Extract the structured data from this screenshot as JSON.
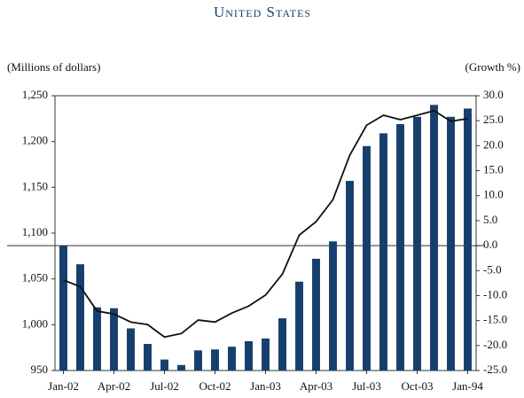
{
  "chart_data": {
    "type": "bar",
    "title": "United States",
    "y_label": "(Millions of dollars)",
    "y2_label": "(Growth %)",
    "categories": [
      "Jan-02",
      null,
      null,
      "Apr-02",
      null,
      null,
      "Jul-02",
      null,
      null,
      "Oct-02",
      null,
      null,
      "Jan-03",
      null,
      null,
      "Apr-03",
      null,
      null,
      "Jul-03",
      null,
      null,
      "Oct-03",
      null,
      null,
      "Jan-94"
    ],
    "series": [
      {
        "type": "bar",
        "axis": "y",
        "color": "#163f6e",
        "values": [
          1086,
          1066,
          1019,
          1018,
          996,
          979,
          962,
          956,
          972,
          973,
          976,
          982,
          985,
          1007,
          1047,
          1072,
          1091,
          1157,
          1195,
          1209,
          1219,
          1227,
          1240,
          1227,
          1236
        ]
      },
      {
        "type": "line",
        "axis": "y2",
        "color": "#111111",
        "values": [
          -6.9,
          -8.2,
          -13.1,
          -13.7,
          -15.3,
          -15.8,
          -18.3,
          -17.6,
          -14.9,
          -15.3,
          -13.5,
          -12.1,
          -9.9,
          -5.7,
          2.1,
          4.8,
          9.2,
          18.1,
          24.1,
          26.1,
          25.2,
          26.1,
          27.0,
          24.9,
          25.4
        ]
      }
    ],
    "ylim": [
      950,
      1250
    ],
    "yticks": [
      {
        "value": 950,
        "label": "950"
      },
      {
        "value": 1000,
        "label": "1,000"
      },
      {
        "value": 1050,
        "label": "1,050"
      },
      {
        "value": 1100,
        "label": "1,100"
      },
      {
        "value": 1150,
        "label": "1,150"
      },
      {
        "value": 1200,
        "label": "1,200"
      },
      {
        "value": 1250,
        "label": "1,250"
      }
    ],
    "y2lim": [
      -25,
      30
    ],
    "y2ticks": [
      {
        "value": 30,
        "label": "30.0"
      },
      {
        "value": 25,
        "label": "25.0"
      },
      {
        "value": 20,
        "label": "20.0"
      },
      {
        "value": 15,
        "label": "15.0"
      },
      {
        "value": 10,
        "label": "10.0"
      },
      {
        "value": 5,
        "label": "5.0"
      },
      {
        "value": 0,
        "label": "0.0"
      },
      {
        "value": -5,
        "label": "-5.0"
      },
      {
        "value": -10,
        "label": "-10.0"
      },
      {
        "value": -15,
        "label": "-15.0"
      },
      {
        "value": -20,
        "label": "-20.0"
      },
      {
        "value": -25,
        "label": "-25.0"
      }
    ],
    "zero_line": 0
  }
}
